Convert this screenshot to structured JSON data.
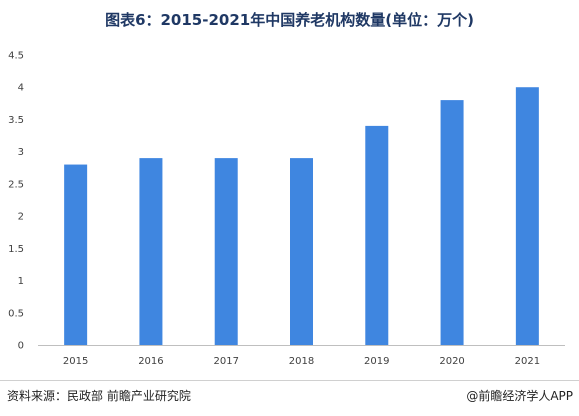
{
  "chart_data": {
    "type": "bar",
    "title": "图表6：2015-2021年中国养老机构数量(单位：万个)",
    "categories": [
      "2015",
      "2016",
      "2017",
      "2018",
      "2019",
      "2020",
      "2021"
    ],
    "values": [
      2.8,
      2.9,
      2.9,
      2.9,
      3.4,
      3.8,
      4.0
    ],
    "yticks": [
      "0",
      "0.5",
      "1",
      "1.5",
      "2",
      "2.5",
      "3",
      "3.5",
      "4",
      "4.5"
    ],
    "ylim": [
      0,
      4.5
    ],
    "grid": false,
    "bar_color": "#3f86e0"
  },
  "footer": {
    "source": "资料来源：民政部 前瞻产业研究院",
    "brand": "@前瞻经济学人APP"
  }
}
